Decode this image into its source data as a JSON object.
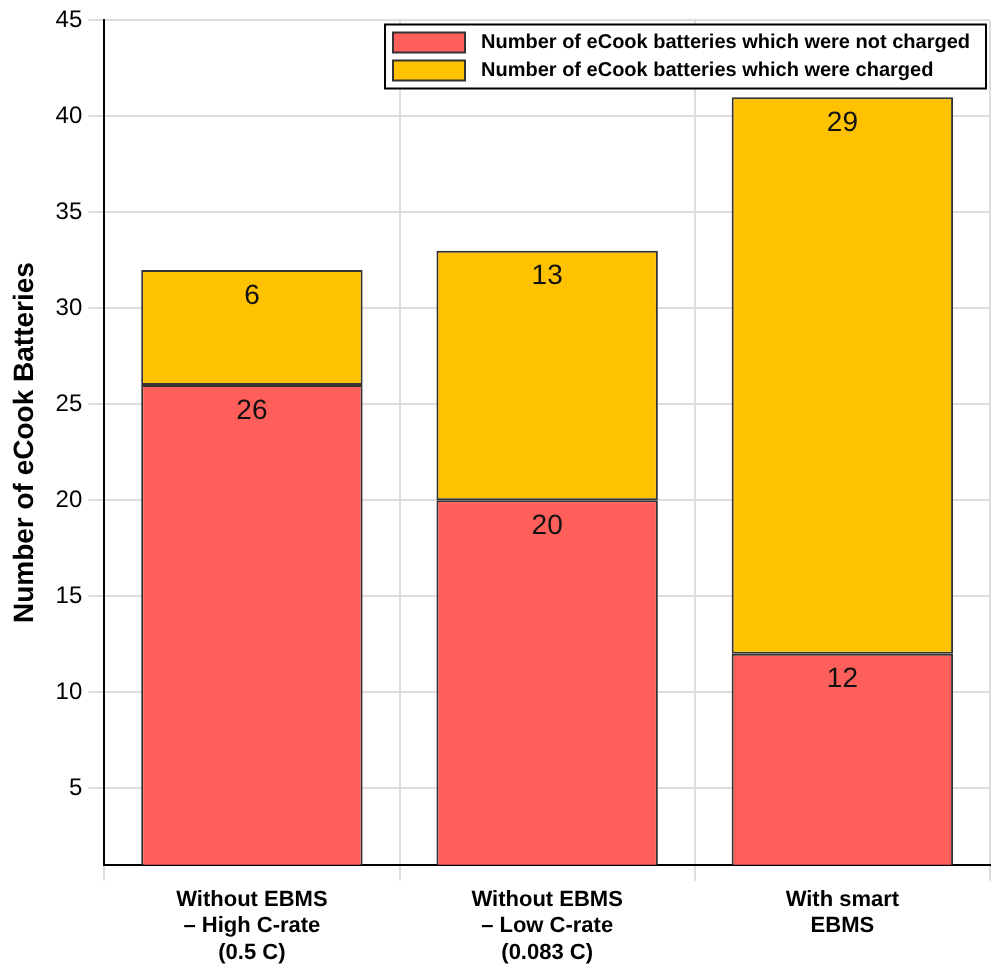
{
  "chart_data": {
    "type": "bar",
    "stacked": true,
    "ylabel": "Number of eCook Batteries",
    "categories": [
      "Without EBMS – High C-rate (0.5 C)",
      "Without EBMS – Low C-rate (0.083 C)",
      "With smart EBMS"
    ],
    "series": [
      {
        "name": "Number of eCook batteries which were not charged",
        "color": "#ff5f5a",
        "values": [
          26,
          20,
          12
        ]
      },
      {
        "name": "Number of eCook batteries which were charged",
        "color": "#ffc200",
        "values": [
          6,
          13,
          29
        ]
      }
    ],
    "ylim": [
      1,
      45
    ],
    "yticks": [
      5,
      10,
      15,
      20,
      25,
      30,
      35,
      40,
      45
    ],
    "grid": true,
    "legend": "top right",
    "data_labels": true
  }
}
